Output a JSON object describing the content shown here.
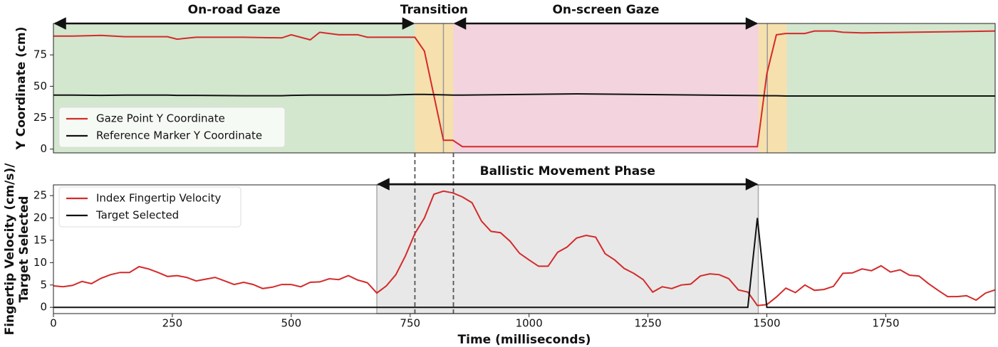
{
  "chart_data": [
    {
      "type": "line",
      "ylabel": [
        "Y Coordinate (cm)"
      ],
      "xlim": [
        0,
        1980
      ],
      "ylim": [
        -3,
        100
      ],
      "yticks": [
        0,
        25,
        50,
        75
      ],
      "legend": "lower left",
      "regions": [
        {
          "start": 0,
          "end": 760,
          "color": "#d3e6ce"
        },
        {
          "start": 760,
          "end": 841,
          "color": "#f6e0ae"
        },
        {
          "start": 841,
          "end": 1482,
          "color": "#f2d3de"
        },
        {
          "start": 1482,
          "end": 1542,
          "color": "#f6e0ae"
        },
        {
          "start": 1542,
          "end": 1980,
          "color": "#d3e6ce"
        }
      ],
      "vlines": [
        820,
        1501
      ],
      "annotations": [
        {
          "text": "On-road Gaze",
          "start": 0,
          "end": 760
        },
        {
          "text": "Transition",
          "start": 760,
          "end": 841,
          "arrow": false
        },
        {
          "text": "On-screen Gaze",
          "start": 841,
          "end": 1482
        }
      ],
      "x": [
        0,
        40,
        100,
        150,
        240,
        260,
        300,
        400,
        480,
        500,
        540,
        560,
        600,
        640,
        660,
        700,
        760,
        780,
        820,
        840,
        860,
        1100,
        1480,
        1500,
        1520,
        1540,
        1580,
        1600,
        1640,
        1660,
        1700,
        1800,
        1900,
        1980
      ],
      "series": [
        {
          "name": "Gaze Point Y Coordinate",
          "color": "#d42a2a",
          "values": [
            90,
            90,
            90.5,
            89.5,
            89.5,
            87.5,
            89,
            89,
            88.5,
            91,
            87,
            93,
            91,
            91,
            89,
            89,
            89,
            78,
            7,
            7,
            2,
            2,
            2,
            60,
            91,
            92,
            92,
            94,
            94,
            93,
            92.5,
            93,
            93.5,
            94
          ]
        },
        {
          "name": "Reference Marker Y Coordinate",
          "color": "#111111",
          "values": [
            43,
            43,
            42.8,
            43,
            43,
            42.8,
            42.8,
            42.5,
            42.5,
            42.8,
            43,
            43,
            43,
            43,
            43,
            43,
            43.5,
            43.5,
            43.2,
            43,
            43,
            44,
            42.6,
            42.5,
            42.5,
            42.3,
            42.3,
            42.3,
            42.3,
            42.3,
            42.3,
            42.3,
            42.3,
            42.3
          ]
        }
      ]
    },
    {
      "type": "line",
      "ylabel": [
        "Fingertip Velocity (cm/s)/",
        "Target Selected"
      ],
      "xlabel": "Time (milliseconds)",
      "xlim": [
        0,
        1980
      ],
      "xticks": [
        0,
        250,
        500,
        750,
        1000,
        1250,
        1500,
        1750
      ],
      "ylim": [
        -1.4,
        27.4
      ],
      "yticks": [
        0,
        5,
        10,
        15,
        20,
        25
      ],
      "legend": "upper left",
      "regions": [
        {
          "start": 680,
          "end": 1482,
          "color": "#e8e8e8"
        }
      ],
      "vlines": [
        760,
        841
      ],
      "annotations": [
        {
          "text": "Ballistic Movement Phase",
          "start": 680,
          "end": 1482
        }
      ],
      "x": [
        0,
        20,
        40,
        60,
        80,
        100,
        120,
        140,
        160,
        180,
        200,
        220,
        240,
        260,
        280,
        300,
        320,
        340,
        360,
        380,
        400,
        420,
        440,
        460,
        480,
        500,
        520,
        540,
        560,
        580,
        600,
        620,
        640,
        660,
        680,
        700,
        720,
        740,
        760,
        780,
        800,
        820,
        840,
        860,
        880,
        900,
        920,
        940,
        960,
        980,
        1000,
        1020,
        1040,
        1060,
        1080,
        1100,
        1120,
        1140,
        1160,
        1180,
        1200,
        1220,
        1240,
        1260,
        1280,
        1300,
        1320,
        1340,
        1360,
        1380,
        1400,
        1420,
        1440,
        1460,
        1480,
        1500,
        1520,
        1540,
        1560,
        1580,
        1600,
        1620,
        1640,
        1660,
        1680,
        1700,
        1720,
        1740,
        1760,
        1780,
        1800,
        1820,
        1840,
        1860,
        1880,
        1900,
        1920,
        1940,
        1960,
        1980
      ],
      "series": [
        {
          "name": "Index Fingertip Velocity",
          "color": "#d42a2a",
          "values": [
            4.8,
            4.6,
            4.9,
            5.8,
            5.3,
            6.5,
            7.3,
            7.8,
            7.8,
            9.1,
            8.6,
            7.8,
            6.9,
            7.1,
            6.7,
            5.9,
            6.3,
            6.7,
            5.9,
            5.1,
            5.6,
            5.1,
            4.2,
            4.5,
            5.1,
            5.1,
            4.6,
            5.6,
            5.7,
            6.4,
            6.2,
            7.1,
            6.1,
            5.5,
            3.2,
            4.8,
            7.3,
            11.5,
            16.5,
            20,
            25.3,
            26,
            25.6,
            24.7,
            23.4,
            19.3,
            17,
            16.7,
            14.8,
            12.1,
            10.6,
            9.2,
            9.2,
            12.3,
            13.5,
            15.5,
            16.1,
            15.7,
            12,
            10.6,
            8.7,
            7.6,
            6.2,
            3.4,
            4.6,
            4.2,
            5,
            5.2,
            7,
            7.5,
            7.3,
            6.4,
            3.9,
            3.4,
            0.4,
            0.6,
            2.3,
            4.3,
            3.3,
            5,
            3.8,
            4,
            4.7,
            7.6,
            7.7,
            8.6,
            8.2,
            9.3,
            7.9,
            8.4,
            7.2,
            7,
            5.3,
            3.8,
            2.4,
            2.4,
            2.6,
            1.6,
            3.2,
            3.9
          ]
        },
        {
          "name": "Target Selected",
          "color": "#111111",
          "values": [
            0,
            0,
            0,
            0,
            0,
            0,
            0,
            0,
            0,
            0,
            0,
            0,
            0,
            0,
            0,
            0,
            0,
            0,
            0,
            0,
            0,
            0,
            0,
            0,
            0,
            0,
            0,
            0,
            0,
            0,
            0,
            0,
            0,
            0,
            0,
            0,
            0,
            0,
            0,
            0,
            0,
            0,
            0,
            0,
            0,
            0,
            0,
            0,
            0,
            0,
            0,
            0,
            0,
            0,
            0,
            0,
            0,
            0,
            0,
            0,
            0,
            0,
            0,
            0,
            0,
            0,
            0,
            0,
            0,
            0,
            0,
            0,
            0,
            0,
            20,
            0,
            0,
            0,
            0,
            0,
            0,
            0,
            0,
            0,
            0,
            0,
            0,
            0,
            0,
            0,
            0,
            0,
            0,
            0,
            0,
            0,
            0,
            0,
            0,
            0
          ]
        }
      ]
    }
  ]
}
